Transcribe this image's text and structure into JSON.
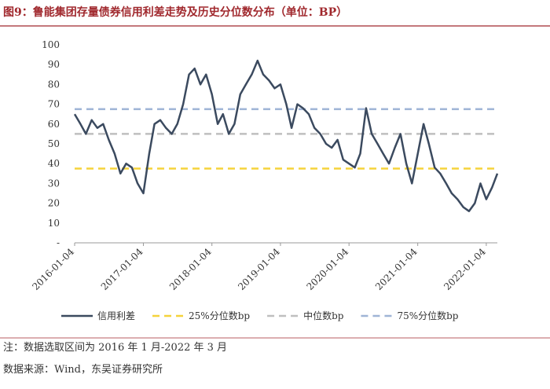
{
  "chart_data": {
    "type": "line",
    "title": "图9：鲁能集团存量债券信用利差走势及历史分位数分布（单位：BP）",
    "x": [
      "2016-01-04",
      "2016-02-04",
      "2016-03-04",
      "2016-04-04",
      "2016-05-04",
      "2016-06-04",
      "2016-07-04",
      "2016-08-04",
      "2016-09-04",
      "2016-10-04",
      "2016-11-04",
      "2016-12-04",
      "2017-01-04",
      "2017-02-04",
      "2017-03-04",
      "2017-04-04",
      "2017-05-04",
      "2017-06-04",
      "2017-07-04",
      "2017-08-04",
      "2017-09-04",
      "2017-10-04",
      "2017-11-04",
      "2017-12-04",
      "2018-01-04",
      "2018-02-04",
      "2018-03-04",
      "2018-04-04",
      "2018-05-04",
      "2018-06-04",
      "2018-07-04",
      "2018-08-04",
      "2018-09-04",
      "2018-10-04",
      "2018-11-04",
      "2018-12-04",
      "2019-01-04",
      "2019-02-04",
      "2019-03-04",
      "2019-04-04",
      "2019-05-04",
      "2019-06-04",
      "2019-07-04",
      "2019-08-04",
      "2019-09-04",
      "2019-10-04",
      "2019-11-04",
      "2019-12-04",
      "2020-01-04",
      "2020-02-04",
      "2020-03-04",
      "2020-04-04",
      "2020-05-04",
      "2020-06-04",
      "2020-07-04",
      "2020-08-04",
      "2020-09-04",
      "2020-10-04",
      "2020-11-04",
      "2020-12-04",
      "2021-01-04",
      "2021-02-04",
      "2021-03-04",
      "2021-04-04",
      "2021-05-04",
      "2021-06-04",
      "2021-07-04",
      "2021-08-04",
      "2021-09-04",
      "2021-10-04",
      "2021-11-04",
      "2021-12-04",
      "2022-01-04",
      "2022-02-04",
      "2022-03-04"
    ],
    "series": [
      {
        "name": "信用利差",
        "color": "#3b4a5f",
        "values": [
          65,
          60,
          55,
          62,
          58,
          60,
          52,
          45,
          35,
          40,
          38,
          30,
          25,
          45,
          60,
          62,
          58,
          55,
          60,
          70,
          85,
          88,
          80,
          85,
          75,
          60,
          65,
          55,
          60,
          75,
          80,
          85,
          92,
          85,
          82,
          78,
          80,
          70,
          58,
          70,
          68,
          65,
          58,
          55,
          50,
          48,
          52,
          42,
          40,
          38,
          45,
          68,
          55,
          50,
          45,
          40,
          48,
          55,
          40,
          30,
          45,
          60,
          50,
          38,
          35,
          30,
          25,
          22,
          18,
          16,
          20,
          30,
          22,
          28,
          35
        ]
      }
    ],
    "reference_lines": [
      {
        "name": "25%分位数bp",
        "value": 37.5,
        "color": "#f5d33b"
      },
      {
        "name": "中位数bp",
        "value": 55,
        "color": "#bfbfbf"
      },
      {
        "name": "75%分位数bp",
        "value": 67.5,
        "color": "#9fb4d6"
      }
    ],
    "xlim": [
      "2016-01-04",
      "2022-03-04"
    ],
    "xticks": [
      "2016-01-04",
      "2017-01-04",
      "2018-01-04",
      "2019-01-04",
      "2020-01-04",
      "2021-01-04",
      "2022-01-04"
    ],
    "ylim": [
      0,
      100
    ],
    "yticks": [
      {
        "value": 0,
        "label": "-"
      },
      10,
      20,
      30,
      40,
      50,
      60,
      70,
      80,
      90,
      100
    ],
    "notes": [
      "注：数据选取区间为 2016 年 1 月-2022 年 3 月",
      "数据来源：Wind，东吴证券研究所"
    ]
  }
}
